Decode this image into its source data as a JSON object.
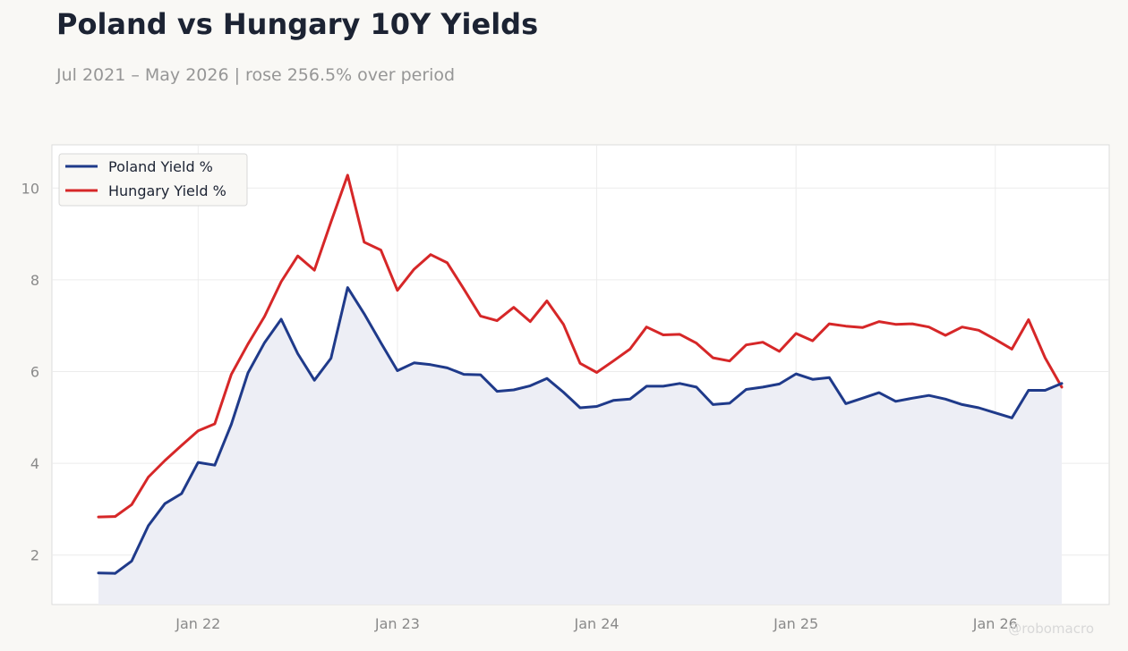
{
  "title": "Poland vs Hungary 10Y Yields",
  "subtitle": "Jul 2021 – May 2026 | rose 256.5% over period",
  "watermark": "@robomacro",
  "colors": {
    "poland": "#1f3a8a",
    "hungary": "#d62728",
    "area_fill": "#edeef5",
    "grid": "#ececec",
    "axis_text": "#8a8a8a",
    "plot_bg": "#ffffff",
    "page_bg": "#f9f8f5"
  },
  "chart_data": {
    "type": "line",
    "title": "Poland vs Hungary 10Y Yields",
    "subtitle": "Jul 2021 – May 2026 | rose 256.5% over period",
    "xlabel": "",
    "ylabel": "",
    "x_start": "2021-07",
    "x_end": "2026-05",
    "x_ticks": [
      "2022-01",
      "2023-01",
      "2024-01",
      "2025-01",
      "2026-01"
    ],
    "x_tick_labels": [
      "Jan 22",
      "Jan 23",
      "Jan 24",
      "Jan 25",
      "Jan 26"
    ],
    "y_ticks": [
      2,
      4,
      6,
      8,
      10
    ],
    "y_tick_labels": [
      "2",
      "4",
      "6",
      "8",
      "10"
    ],
    "ylim": [
      1,
      11
    ],
    "grid": true,
    "legend_position": "top-left",
    "area_under": "Poland Yield %",
    "x": [
      "2021-07",
      "2021-08",
      "2021-09",
      "2021-10",
      "2021-11",
      "2021-12",
      "2022-01",
      "2022-02",
      "2022-03",
      "2022-04",
      "2022-05",
      "2022-06",
      "2022-07",
      "2022-08",
      "2022-09",
      "2022-10",
      "2022-11",
      "2022-12",
      "2023-01",
      "2023-02",
      "2023-03",
      "2023-04",
      "2023-05",
      "2023-06",
      "2023-07",
      "2023-08",
      "2023-09",
      "2023-10",
      "2023-11",
      "2023-12",
      "2024-01",
      "2024-02",
      "2024-03",
      "2024-04",
      "2024-05",
      "2024-06",
      "2024-07",
      "2024-08",
      "2024-09",
      "2024-10",
      "2024-11",
      "2024-12",
      "2025-01",
      "2025-02",
      "2025-03",
      "2025-04",
      "2025-05",
      "2025-06",
      "2025-07",
      "2025-08",
      "2025-09",
      "2025-10",
      "2025-11",
      "2025-12",
      "2026-01",
      "2026-02",
      "2026-03",
      "2026-04",
      "2026-05"
    ],
    "series": [
      {
        "name": "Poland Yield %",
        "color": "#1f3a8a",
        "values": [
          1.61,
          1.6,
          1.87,
          2.64,
          3.12,
          3.34,
          4.02,
          3.96,
          4.85,
          5.97,
          6.63,
          7.14,
          6.39,
          5.81,
          6.29,
          7.83,
          7.26,
          6.63,
          6.02,
          6.19,
          6.15,
          6.08,
          5.94,
          5.93,
          5.57,
          5.6,
          5.69,
          5.85,
          5.55,
          5.21,
          5.24,
          5.37,
          5.4,
          5.68,
          5.68,
          5.74,
          5.66,
          5.28,
          5.31,
          5.61,
          5.66,
          5.73,
          5.95,
          5.83,
          5.87,
          5.3,
          5.42,
          5.54,
          5.35,
          5.42,
          5.48,
          5.4,
          5.28,
          5.21,
          5.1,
          4.99,
          5.59,
          5.59,
          5.74
        ]
      },
      {
        "name": "Hungary Yield %",
        "color": "#d62728",
        "values": [
          2.83,
          2.84,
          3.1,
          3.7,
          4.06,
          4.39,
          4.71,
          4.86,
          5.94,
          6.6,
          7.2,
          7.96,
          8.52,
          8.21,
          9.26,
          10.28,
          8.82,
          8.65,
          7.77,
          8.23,
          8.55,
          8.37,
          7.8,
          7.21,
          7.11,
          7.4,
          7.09,
          7.54,
          7.03,
          6.18,
          5.98,
          6.23,
          6.49,
          6.97,
          6.8,
          6.81,
          6.62,
          6.3,
          6.23,
          6.58,
          6.64,
          6.44,
          6.83,
          6.67,
          7.04,
          6.99,
          6.96,
          7.09,
          7.03,
          7.04,
          6.97,
          6.79,
          6.97,
          6.9,
          6.7,
          6.49,
          7.13,
          6.3,
          5.66
        ]
      }
    ]
  }
}
